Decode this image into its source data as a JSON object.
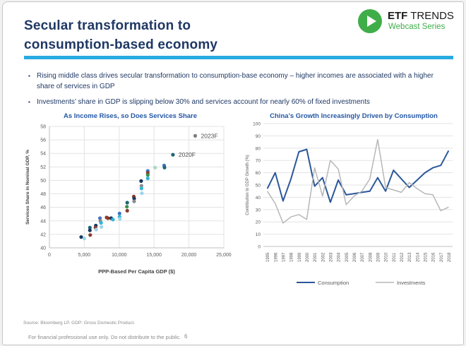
{
  "slide": {
    "title_line1": "Secular transformation to",
    "title_line2": "consumption-based economy",
    "accent_color": "#29abe2",
    "page_number": "6"
  },
  "logo": {
    "brand_bold": "ETF",
    "brand_regular": " TRENDS",
    "subtitle": "Webcast Series",
    "green": "#3fae49"
  },
  "bullets": [
    "Rising middle class drives secular transformation to consumption-base economy – higher incomes are associated with a higher share of services in GDP",
    "Investments’ share in GDP is slipping below 30% and services account for nearly 60% of fixed investments"
  ],
  "footer": {
    "source": "Source: Bloomberg LP. GDP: Gross Domestic Product.",
    "disclaimer": "For financial professional use only. Do not distribute to the public."
  },
  "chart_data": [
    {
      "type": "scatter",
      "title": "As Income Rises, so Does Services Share",
      "xlabel": "PPP-Based Per Capita GDP ($)",
      "ylabel": "Services Share in Nominal GDP, %",
      "xlim": [
        0,
        25000
      ],
      "ylim": [
        40,
        58
      ],
      "x_ticks": [
        0,
        5000,
        10000,
        15000,
        20000,
        25000
      ],
      "x_tick_labels": [
        "0",
        "5,000",
        "10,000",
        "15,000",
        "20,000",
        "25,000"
      ],
      "y_ticks": [
        40,
        42,
        44,
        46,
        48,
        50,
        52,
        54,
        56,
        58
      ],
      "grid": true,
      "points": [
        {
          "x": 4550,
          "y": 41.6,
          "color": "#17365d"
        },
        {
          "x": 5000,
          "y": 41.4,
          "color": "#9fd5e8"
        },
        {
          "x": 5800,
          "y": 43.0,
          "color": "#1b6678"
        },
        {
          "x": 5800,
          "y": 42.6,
          "color": "#17365d"
        },
        {
          "x": 5850,
          "y": 41.9,
          "color": "#8c3b2e"
        },
        {
          "x": 6650,
          "y": 43.3,
          "color": "#17365d"
        },
        {
          "x": 6600,
          "y": 43.0,
          "color": "#8c3b2e"
        },
        {
          "x": 6700,
          "y": 42.7,
          "color": "#9fd5e8"
        },
        {
          "x": 7250,
          "y": 44.4,
          "color": "#4472c4"
        },
        {
          "x": 7300,
          "y": 44.0,
          "color": "#8c8c8c"
        },
        {
          "x": 7400,
          "y": 43.7,
          "color": "#33b5d5"
        },
        {
          "x": 7450,
          "y": 43.1,
          "color": "#9fd5e8"
        },
        {
          "x": 8200,
          "y": 44.5,
          "color": "#8c3b2e"
        },
        {
          "x": 8400,
          "y": 44.4,
          "color": "#8c3b2e"
        },
        {
          "x": 8850,
          "y": 44.4,
          "color": "#17365d"
        },
        {
          "x": 9100,
          "y": 44.2,
          "color": "#33b5d5"
        },
        {
          "x": 10050,
          "y": 45.1,
          "color": "#4472c4"
        },
        {
          "x": 10050,
          "y": 44.6,
          "color": "#33b5d5"
        },
        {
          "x": 10100,
          "y": 44.3,
          "color": "#9fd5e8"
        },
        {
          "x": 11150,
          "y": 46.7,
          "color": "#1b6678"
        },
        {
          "x": 11100,
          "y": 46.1,
          "color": "#3e8f4e"
        },
        {
          "x": 11150,
          "y": 45.5,
          "color": "#8c3b2e"
        },
        {
          "x": 12100,
          "y": 47.6,
          "color": "#8c3b2e"
        },
        {
          "x": 12150,
          "y": 47.3,
          "color": "#17365d"
        },
        {
          "x": 12150,
          "y": 46.9,
          "color": "#8c8c8c"
        },
        {
          "x": 13150,
          "y": 49.9,
          "color": "#17365d"
        },
        {
          "x": 13200,
          "y": 49.2,
          "color": "#8c8c8c"
        },
        {
          "x": 13200,
          "y": 48.8,
          "color": "#33b5d5"
        },
        {
          "x": 13250,
          "y": 48.1,
          "color": "#9fd5e8"
        },
        {
          "x": 14100,
          "y": 51.4,
          "color": "#4472c4"
        },
        {
          "x": 14100,
          "y": 51.1,
          "color": "#8c3b2e"
        },
        {
          "x": 14100,
          "y": 50.8,
          "color": "#3e8f4e"
        },
        {
          "x": 14100,
          "y": 50.3,
          "color": "#33b5d5"
        },
        {
          "x": 15150,
          "y": 51.9,
          "color": "#abd5c5"
        },
        {
          "x": 16450,
          "y": 52.2,
          "color": "#4472c4"
        },
        {
          "x": 16500,
          "y": 51.9,
          "color": "#1b6678"
        }
      ],
      "annotations": [
        {
          "label": "2020F",
          "x": 17700,
          "y": 53.8,
          "color": "#1b6678"
        },
        {
          "label": "2023F",
          "x": 20900,
          "y": 56.6,
          "color": "#7f7f7f"
        }
      ]
    },
    {
      "type": "line",
      "title": "China’s Growth Increasingly Driven by Consumption",
      "ylabel": "Contribution to GDP Growth (%)",
      "ylim": [
        0,
        100
      ],
      "y_ticks": [
        0,
        10,
        20,
        30,
        40,
        50,
        60,
        70,
        80,
        90,
        100
      ],
      "grid": true,
      "legend_position": "bottom",
      "categories": [
        "1995",
        "1996",
        "1997",
        "1998",
        "1999",
        "2000",
        "2001",
        "2002",
        "2003",
        "2004",
        "2005",
        "2006",
        "2007",
        "2008",
        "2009",
        "2010",
        "2011",
        "2012",
        "2013",
        "2014",
        "2015",
        "2016",
        "2017",
        "2018"
      ],
      "series": [
        {
          "name": "Consumption",
          "color": "#2b579a",
          "width": 2,
          "values": [
            47,
            60,
            37,
            55,
            77,
            79,
            49,
            56,
            36,
            54,
            42,
            43,
            44,
            45,
            56,
            45,
            62,
            55,
            48,
            54,
            60,
            64,
            66,
            78
          ]
        },
        {
          "name": "Investments",
          "color": "#b7b7b7",
          "width": 1.5,
          "values": [
            45,
            35,
            19,
            24,
            26,
            22,
            64,
            41,
            70,
            63,
            34,
            41,
            45,
            55,
            87,
            48,
            46,
            44,
            52,
            47,
            43,
            42,
            29,
            32
          ]
        }
      ]
    }
  ]
}
